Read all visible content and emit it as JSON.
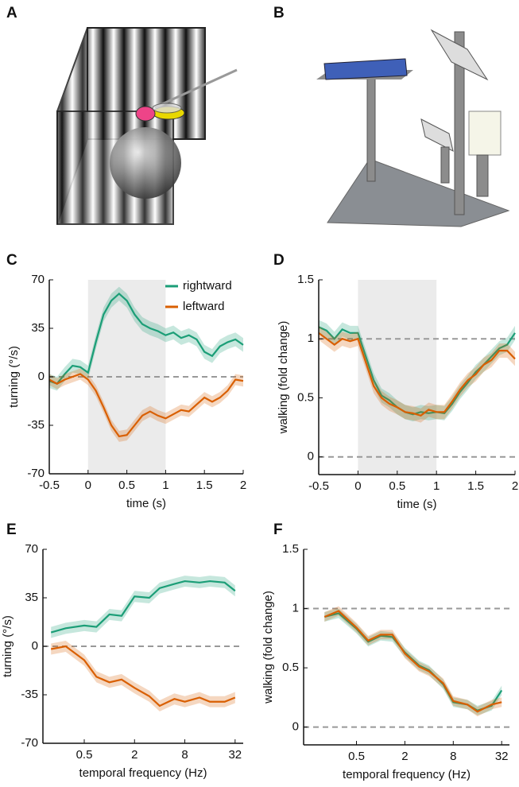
{
  "panels": [
    {
      "label": "A"
    },
    {
      "label": "B"
    }
  ],
  "chart_data": [
    {
      "type": "line",
      "label": "C",
      "xlabel": "time (s)",
      "ylabel": "turning (°/s)",
      "x": [
        -0.5,
        -0.4,
        -0.3,
        -0.2,
        -0.1,
        0,
        0.1,
        0.2,
        0.3,
        0.4,
        0.5,
        0.6,
        0.7,
        0.8,
        0.9,
        1,
        1.1,
        1.2,
        1.3,
        1.4,
        1.5,
        1.6,
        1.7,
        1.8,
        1.9,
        2
      ],
      "xlim": [
        -0.5,
        2
      ],
      "xticks": [
        -0.5,
        0,
        0.5,
        1,
        1.5,
        2
      ],
      "ylim": [
        -70,
        70
      ],
      "yticks": [
        -70,
        -35,
        0,
        35,
        70
      ],
      "shaded_x": [
        0,
        1
      ],
      "hlines": [
        0
      ],
      "legend": "upper right",
      "series": [
        {
          "name": "rightward",
          "color": "#1b9e77",
          "values": [
            -3,
            -5,
            2,
            8,
            7,
            3,
            25,
            45,
            55,
            60,
            55,
            45,
            38,
            35,
            33,
            30,
            32,
            28,
            30,
            27,
            18,
            15,
            22,
            25,
            27,
            23
          ],
          "error": [
            5,
            5,
            5,
            5,
            5,
            5,
            5,
            5,
            5,
            5,
            5,
            5,
            5,
            5,
            5,
            5,
            5,
            5,
            5,
            5,
            5,
            5,
            5,
            5,
            5,
            5
          ]
        },
        {
          "name": "leftward",
          "color": "#d95f02",
          "values": [
            -2,
            -5,
            -2,
            0,
            2,
            -2,
            -10,
            -22,
            -35,
            -43,
            -42,
            -35,
            -28,
            -25,
            -28,
            -30,
            -27,
            -24,
            -25,
            -20,
            -15,
            -18,
            -15,
            -10,
            -2,
            -3
          ],
          "error": [
            4,
            4,
            4,
            4,
            4,
            4,
            4,
            4,
            4,
            4,
            4,
            4,
            4,
            4,
            4,
            4,
            4,
            4,
            4,
            4,
            4,
            4,
            4,
            4,
            4,
            4
          ]
        }
      ]
    },
    {
      "type": "line",
      "label": "D",
      "xlabel": "time (s)",
      "ylabel": "walking (fold change)",
      "x": [
        -0.5,
        -0.4,
        -0.3,
        -0.2,
        -0.1,
        0,
        0.1,
        0.2,
        0.3,
        0.4,
        0.5,
        0.6,
        0.7,
        0.8,
        0.9,
        1,
        1.1,
        1.2,
        1.3,
        1.4,
        1.5,
        1.6,
        1.7,
        1.8,
        1.9,
        2
      ],
      "xlim": [
        -0.5,
        2
      ],
      "xticks": [
        -0.5,
        0,
        0.5,
        1,
        1.5,
        2
      ],
      "ylim": [
        -0.15,
        1.5
      ],
      "yticks": [
        0,
        0.5,
        1,
        1.5
      ],
      "shaded_x": [
        0,
        1
      ],
      "hlines": [
        0,
        1
      ],
      "series": [
        {
          "color": "#1b9e77",
          "values": [
            1.1,
            1.07,
            1.0,
            1.08,
            1.05,
            1.05,
            0.85,
            0.65,
            0.52,
            0.48,
            0.42,
            0.38,
            0.36,
            0.38,
            0.37,
            0.38,
            0.37,
            0.45,
            0.55,
            0.63,
            0.72,
            0.78,
            0.85,
            0.92,
            0.95,
            1.05
          ],
          "error": [
            0.06,
            0.06,
            0.06,
            0.06,
            0.06,
            0.06,
            0.06,
            0.06,
            0.06,
            0.06,
            0.06,
            0.06,
            0.06,
            0.06,
            0.06,
            0.06,
            0.06,
            0.06,
            0.06,
            0.06,
            0.06,
            0.06,
            0.06,
            0.06,
            0.06,
            0.06
          ]
        },
        {
          "color": "#d95f02",
          "values": [
            1.05,
            1.0,
            0.95,
            1.0,
            0.98,
            1.0,
            0.8,
            0.6,
            0.5,
            0.45,
            0.42,
            0.38,
            0.37,
            0.35,
            0.4,
            0.38,
            0.38,
            0.47,
            0.57,
            0.65,
            0.7,
            0.78,
            0.82,
            0.9,
            0.9,
            0.83
          ],
          "error": [
            0.06,
            0.06,
            0.06,
            0.06,
            0.06,
            0.06,
            0.06,
            0.06,
            0.06,
            0.06,
            0.06,
            0.06,
            0.06,
            0.06,
            0.06,
            0.06,
            0.06,
            0.06,
            0.06,
            0.06,
            0.06,
            0.06,
            0.06,
            0.06,
            0.06,
            0.06
          ]
        }
      ]
    },
    {
      "type": "line",
      "label": "E",
      "xlabel": "temporal frequency (Hz)",
      "ylabel": "turning (°/s)",
      "x": [
        0.2,
        0.3,
        0.5,
        0.7,
        1,
        1.4,
        2,
        3,
        4,
        6,
        8,
        12,
        16,
        24,
        32
      ],
      "xscale": "log",
      "xlim": [
        0.16,
        40
      ],
      "xticks": [
        0.5,
        2,
        8,
        32
      ],
      "ylim": [
        -70,
        70
      ],
      "yticks": [
        -70,
        -35,
        0,
        35,
        70
      ],
      "hlines": [
        0
      ],
      "series": [
        {
          "color": "#1b9e77",
          "values": [
            10,
            13,
            15,
            14,
            23,
            22,
            36,
            35,
            42,
            45,
            47,
            46,
            47,
            46,
            40
          ],
          "error": [
            4,
            4,
            4,
            4,
            4,
            4,
            4,
            4,
            4,
            4,
            4,
            4,
            4,
            4,
            4
          ]
        },
        {
          "color": "#d95f02",
          "values": [
            -2,
            0,
            -10,
            -22,
            -26,
            -24,
            -30,
            -36,
            -43,
            -38,
            -40,
            -37,
            -40,
            -40,
            -37
          ],
          "error": [
            4,
            4,
            4,
            4,
            4,
            4,
            4,
            4,
            4,
            4,
            4,
            4,
            4,
            4,
            4
          ]
        }
      ]
    },
    {
      "type": "line",
      "label": "F",
      "xlabel": "temporal frequency (Hz)",
      "ylabel": "walking (fold change)",
      "x": [
        0.2,
        0.3,
        0.5,
        0.7,
        1,
        1.4,
        2,
        3,
        4,
        6,
        8,
        12,
        16,
        24,
        32
      ],
      "xscale": "log",
      "xlim": [
        0.11,
        40
      ],
      "xticks": [
        0.5,
        2,
        8,
        32
      ],
      "ylim": [
        -0.15,
        1.5
      ],
      "yticks": [
        0,
        0.5,
        1,
        1.5
      ],
      "hlines": [
        0,
        1
      ],
      "series": [
        {
          "color": "#1b9e77",
          "values": [
            0.93,
            0.96,
            0.83,
            0.72,
            0.77,
            0.76,
            0.63,
            0.52,
            0.48,
            0.36,
            0.21,
            0.19,
            0.14,
            0.18,
            0.31
          ],
          "error": [
            0.04,
            0.04,
            0.04,
            0.04,
            0.04,
            0.04,
            0.04,
            0.04,
            0.04,
            0.04,
            0.04,
            0.04,
            0.04,
            0.04,
            0.04
          ]
        },
        {
          "color": "#d95f02",
          "values": [
            0.93,
            0.98,
            0.84,
            0.73,
            0.78,
            0.78,
            0.62,
            0.51,
            0.47,
            0.37,
            0.22,
            0.19,
            0.13,
            0.19,
            0.21
          ],
          "error": [
            0.04,
            0.04,
            0.04,
            0.04,
            0.04,
            0.04,
            0.04,
            0.04,
            0.04,
            0.04,
            0.04,
            0.04,
            0.04,
            0.04,
            0.04
          ]
        }
      ]
    }
  ]
}
